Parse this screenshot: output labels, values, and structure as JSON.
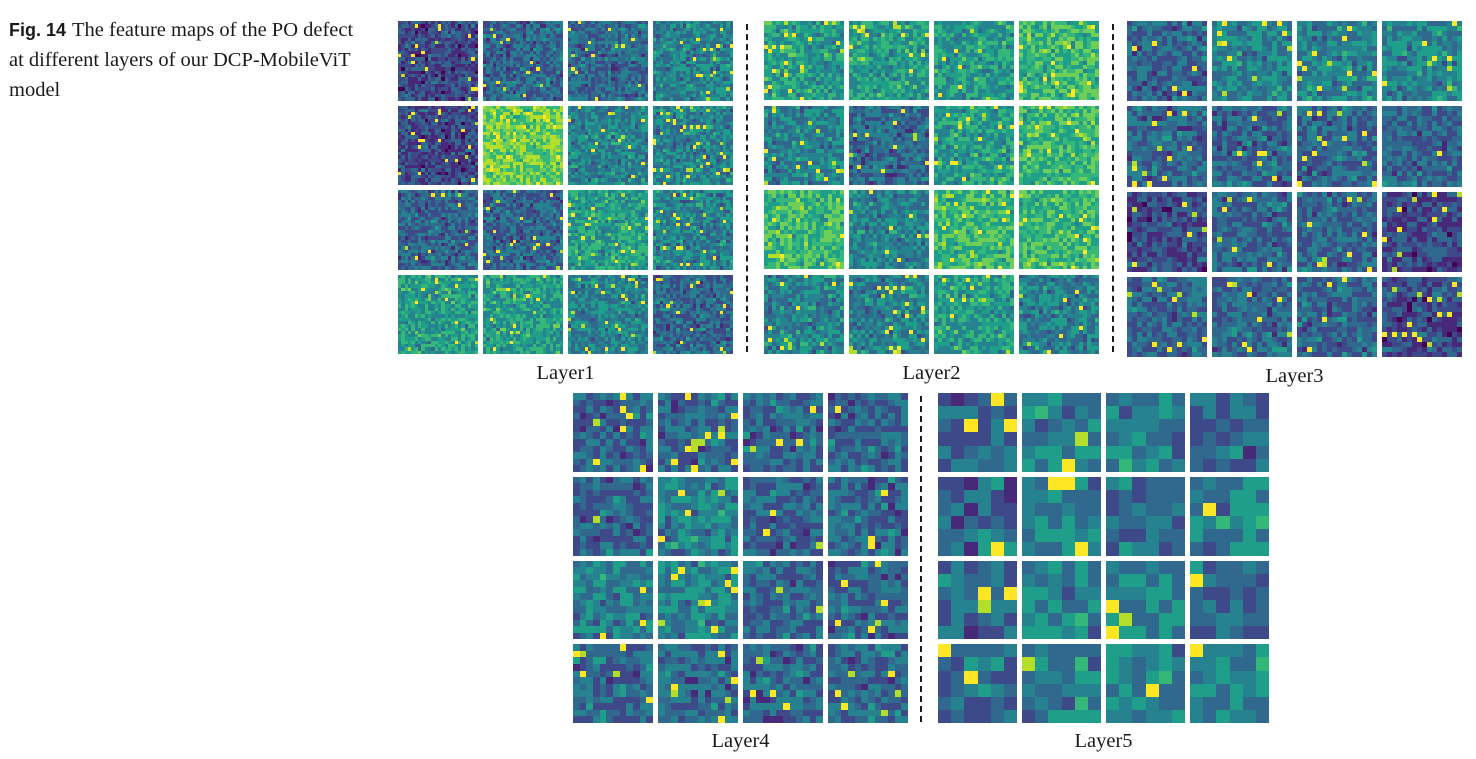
{
  "figure": {
    "label": "Fig. 14",
    "caption": "The feature maps of the PO defect at different layers of our DCP-MobileViT model"
  },
  "colors": {
    "viridis": [
      "#440154",
      "#482878",
      "#3e4989",
      "#31688e",
      "#26828e",
      "#1f9e89",
      "#35b779",
      "#6ece58",
      "#b5de2b",
      "#fde725"
    ],
    "separator": "#1a1a1a",
    "gap": "#ffffff"
  },
  "layers": [
    {
      "id": "layer1",
      "label": "Layer1",
      "rows": 4,
      "cols": 4,
      "res": 24,
      "base": [
        2,
        3,
        3,
        4,
        2,
        7,
        4,
        4,
        3,
        3,
        5,
        4,
        5,
        5,
        4,
        3
      ]
    },
    {
      "id": "layer2",
      "label": "Layer2",
      "rows": 4,
      "cols": 4,
      "res": 20,
      "base": [
        5,
        5,
        5,
        6,
        4,
        3,
        5,
        6,
        6,
        4,
        6,
        6,
        4,
        4,
        5,
        4
      ]
    },
    {
      "id": "layer3",
      "label": "Layer3",
      "rows": 4,
      "cols": 4,
      "res": 16,
      "base": [
        3,
        4,
        4,
        4,
        3,
        3,
        3,
        3,
        2,
        3,
        3,
        2,
        3,
        3,
        3,
        2
      ]
    },
    {
      "id": "layer4",
      "label": "Layer4",
      "rows": 4,
      "cols": 4,
      "res": 12,
      "base": [
        3,
        3,
        3,
        3,
        3,
        4,
        3,
        3,
        4,
        4,
        3,
        3,
        3,
        3,
        3,
        3
      ]
    },
    {
      "id": "layer5",
      "label": "Layer5",
      "rows": 4,
      "cols": 4,
      "res": 6,
      "base": [
        3,
        4,
        4,
        3,
        3,
        4,
        3,
        4,
        3,
        4,
        4,
        3,
        3,
        4,
        4,
        4
      ]
    }
  ]
}
